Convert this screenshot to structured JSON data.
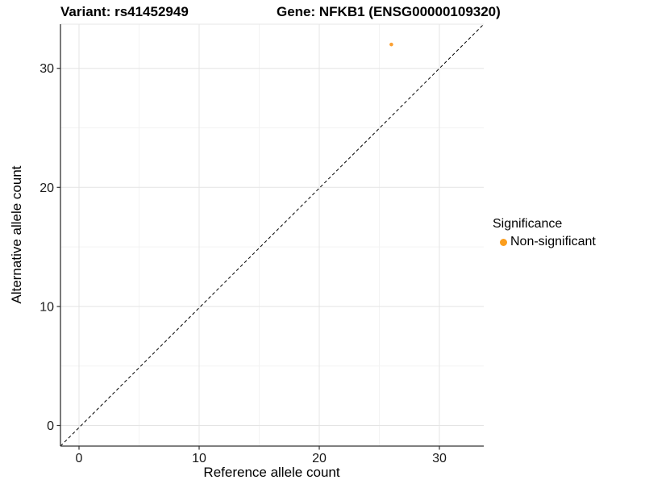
{
  "header": {
    "title_variant": "Variant: rs41452949",
    "title_gene": "Gene: NFKB1 (ENSG00000109320)"
  },
  "chart_data": {
    "type": "scatter",
    "title": "Variant: rs41452949   Gene: NFKB1 (ENSG00000109320)",
    "xlabel": "Reference allele count",
    "ylabel": "Alternative allele count",
    "xlim": [
      -1.6,
      33.7
    ],
    "ylim": [
      -1.6,
      33.9
    ],
    "x_ticks": [
      0,
      10,
      20,
      30
    ],
    "y_ticks": [
      0,
      10,
      20,
      30
    ],
    "x_minor_ticks": [
      5,
      15,
      25
    ],
    "y_minor_ticks": [
      5,
      15,
      25
    ],
    "grid": "major and minor, light gray on white panel",
    "reference_line": {
      "type": "identity y=x",
      "style": "dashed",
      "color": "#000000"
    },
    "series": [
      {
        "name": "Non-significant",
        "color": "#FBA032",
        "point_radius_px": 2.3,
        "points": [
          {
            "x": 26,
            "y": 32
          }
        ]
      }
    ],
    "legend": {
      "title": "Significance",
      "position": "right",
      "items": [
        {
          "label": "Non-significant",
          "color": "#FB9E1E"
        }
      ]
    }
  },
  "colors": {
    "axis_line": "#333333",
    "tick_text": "#1a1a1a",
    "grid_major": "#E4E4E4",
    "grid_minor": "#F3F3F3",
    "panel_top_border": "#E7E7E7"
  }
}
